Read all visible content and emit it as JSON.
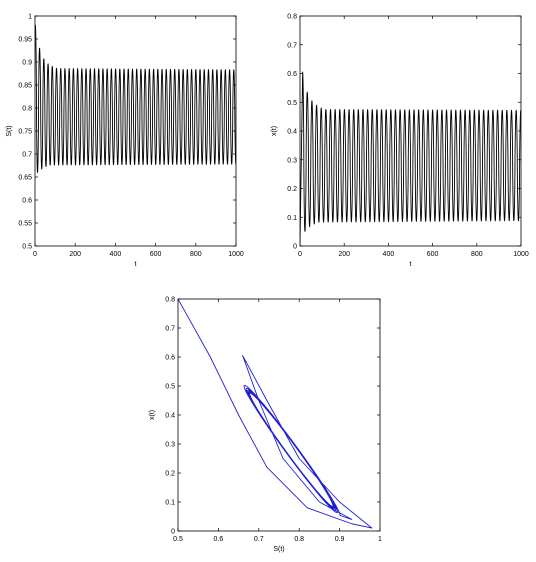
{
  "chart_data": [
    {
      "id": "top-left",
      "type": "line",
      "xlabel": "t",
      "ylabel": "S(t)",
      "xlim": [
        0,
        1000
      ],
      "ylim": [
        0.5,
        1
      ],
      "xticks": [
        0,
        200,
        400,
        600,
        800,
        1000
      ],
      "yticks": [
        0.5,
        0.55,
        0.6,
        0.65,
        0.7,
        0.75,
        0.8,
        0.85,
        0.9,
        0.95,
        1
      ],
      "xtick_labels": [
        "0",
        "200",
        "400",
        "600",
        "800",
        "1000"
      ],
      "ytick_labels": [
        "0.5",
        "0.55",
        "0.6",
        "0.65",
        "0.7",
        "0.75",
        "0.8",
        "0.85",
        "0.9",
        "0.95",
        "1"
      ],
      "line_color": "#000000",
      "series": [
        {
          "period": 21,
          "start": 0.98,
          "steady_max": 0.883,
          "steady_min": 0.678,
          "peaks": [
            {
              "t": 2,
              "value": 0.98
            },
            {
              "t": 25,
              "value": 0.925
            },
            {
              "t": 46,
              "value": 0.905
            },
            {
              "t": 67,
              "value": 0.895
            },
            {
              "t": 88,
              "value": 0.89
            },
            {
              "t": 109,
              "value": 0.886
            }
          ],
          "troughs": [
            {
              "t": 14,
              "value": 0.66
            },
            {
              "t": 35,
              "value": 0.668
            },
            {
              "t": 56,
              "value": 0.673
            },
            {
              "t": 77,
              "value": 0.676
            }
          ]
        }
      ]
    },
    {
      "id": "top-right",
      "type": "line",
      "xlabel": "t",
      "ylabel": "x(t)",
      "xlim": [
        0,
        1000
      ],
      "ylim": [
        0,
        0.8
      ],
      "xticks": [
        0,
        200,
        400,
        600,
        800,
        1000
      ],
      "yticks": [
        0,
        0.1,
        0.2,
        0.3,
        0.4,
        0.5,
        0.6,
        0.7,
        0.8
      ],
      "xtick_labels": [
        "0",
        "200",
        "400",
        "600",
        "800",
        "1000"
      ],
      "ytick_labels": [
        "0",
        "0.1",
        "0.2",
        "0.3",
        "0.4",
        "0.5",
        "0.6",
        "0.7",
        "0.8"
      ],
      "line_color": "#000000",
      "series": [
        {
          "period": 21,
          "start": 0.01,
          "steady_max": 0.472,
          "steady_min": 0.088,
          "peaks": [
            {
              "t": 12,
              "value": 0.605
            },
            {
              "t": 33,
              "value": 0.535
            },
            {
              "t": 54,
              "value": 0.505
            },
            {
              "t": 75,
              "value": 0.49
            },
            {
              "t": 96,
              "value": 0.48
            },
            {
              "t": 117,
              "value": 0.475
            }
          ],
          "troughs": [
            {
              "t": 4,
              "value": 0.0
            },
            {
              "t": 24,
              "value": 0.055
            },
            {
              "t": 45,
              "value": 0.068
            },
            {
              "t": 66,
              "value": 0.077
            },
            {
              "t": 87,
              "value": 0.083
            }
          ]
        }
      ]
    },
    {
      "id": "bottom-phase",
      "type": "line",
      "xlabel": "S(t)",
      "ylabel": "x(t)",
      "xlim": [
        0.5,
        1
      ],
      "ylim": [
        0,
        0.8
      ],
      "xticks": [
        0.5,
        0.6,
        0.7,
        0.8,
        0.9,
        1
      ],
      "yticks": [
        0,
        0.1,
        0.2,
        0.3,
        0.4,
        0.5,
        0.6,
        0.7,
        0.8
      ],
      "xtick_labels": [
        "0.5",
        "0.6",
        "0.7",
        "0.8",
        "0.9",
        "1"
      ],
      "ytick_labels": [
        "0",
        "0.1",
        "0.2",
        "0.3",
        "0.4",
        "0.5",
        "0.6",
        "0.7",
        "0.8"
      ],
      "line_color": "#1f1fd1",
      "series": [
        {
          "start_point": [
            0.5,
            0.8
          ],
          "outer_points": [
            {
              "S": 0.5,
              "x": 0.8
            },
            {
              "S": 0.58,
              "x": 0.6
            },
            {
              "S": 0.65,
              "x": 0.4
            },
            {
              "S": 0.72,
              "x": 0.22
            },
            {
              "S": 0.82,
              "x": 0.08
            },
            {
              "S": 0.93,
              "x": 0.025
            },
            {
              "S": 0.98,
              "x": 0.01
            }
          ],
          "inner_points": [
            {
              "S": 0.98,
              "x": 0.01
            },
            {
              "S": 0.9,
              "x": 0.1
            },
            {
              "S": 0.8,
              "x": 0.25
            },
            {
              "S": 0.72,
              "x": 0.45
            },
            {
              "S": 0.66,
              "x": 0.605
            },
            {
              "S": 0.7,
              "x": 0.45
            },
            {
              "S": 0.76,
              "x": 0.25
            },
            {
              "S": 0.85,
              "x": 0.1
            },
            {
              "S": 0.93,
              "x": 0.04
            }
          ],
          "limit_cycle": {
            "S_min": 0.678,
            "S_max": 0.883,
            "x_min": 0.088,
            "x_max": 0.472
          }
        }
      ]
    }
  ]
}
